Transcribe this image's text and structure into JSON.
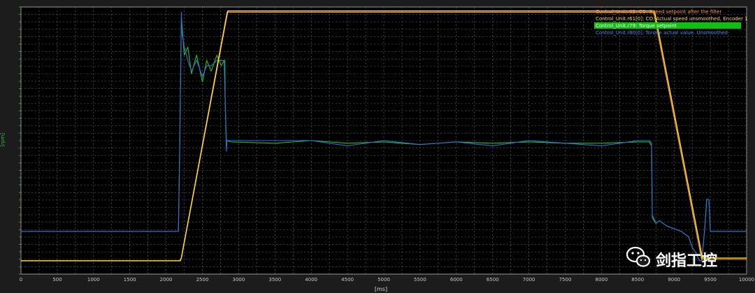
{
  "chart_data": {
    "type": "line",
    "xlabel": "[ms]",
    "ylabel": "[rpm]",
    "xlim": [
      0,
      10000
    ],
    "x_ticks": [
      0,
      500,
      1000,
      1500,
      2000,
      2500,
      3000,
      3500,
      4000,
      4500,
      5000,
      5500,
      6000,
      6500,
      7000,
      7500,
      8000,
      8500,
      9000,
      9500,
      10000
    ],
    "grid": true,
    "legend_position": "top-right",
    "series": [
      {
        "name": "Control_Unit.r62: CO: Speed setpoint after the filter",
        "color": "#ff9a2e",
        "x": [
          0,
          2180,
          2200,
          2840,
          8720,
          9380,
          10000
        ],
        "y": [
          0.05,
          0.05,
          0.05,
          0.98,
          0.98,
          0.055,
          0.055
        ]
      },
      {
        "name": "Control_Unit.r61[0]: CO: Actual speed unsmoothed, Encoder 1",
        "color": "#ffe23a",
        "x": [
          0,
          2190,
          2210,
          2850,
          8730,
          9390,
          10000
        ],
        "y": [
          0.05,
          0.05,
          0.06,
          0.985,
          0.985,
          0.06,
          0.06
        ]
      },
      {
        "name": "Control_Unit.r79: Torque setpoint",
        "color": "#21c11f",
        "x": [
          0,
          2080,
          2170,
          2190,
          2210,
          2220,
          2250,
          2300,
          2350,
          2420,
          2500,
          2560,
          2620,
          2700,
          2760,
          2800,
          2810,
          2815,
          2830,
          2900,
          3500,
          4000,
          4500,
          5000,
          5500,
          6000,
          6500,
          7000,
          7500,
          8000,
          8500,
          8660,
          8690,
          8700,
          8750,
          8800,
          8900,
          9000,
          9100,
          9200,
          9250,
          9300,
          9350,
          9380,
          9420,
          9450,
          9480,
          9500,
          10000
        ],
        "y": [
          0.16,
          0.16,
          0.16,
          0.5,
          0.96,
          0.93,
          0.82,
          0.85,
          0.75,
          0.82,
          0.72,
          0.8,
          0.76,
          0.82,
          0.78,
          0.8,
          0.8,
          0.64,
          0.5,
          0.495,
          0.49,
          0.5,
          0.49,
          0.495,
          0.485,
          0.495,
          0.49,
          0.495,
          0.49,
          0.49,
          0.495,
          0.495,
          0.48,
          0.22,
          0.19,
          0.2,
          0.18,
          0.17,
          0.16,
          0.14,
          0.1,
          0.08,
          0.05,
          0.05,
          0.16,
          0.28,
          0.28,
          0.16,
          0.16
        ]
      },
      {
        "name": "Control_Unit.r80[0]: Torque actual value. Unsmoothed",
        "color": "#2f6fe0",
        "x": [
          0,
          2080,
          2170,
          2190,
          2210,
          2220,
          2250,
          2300,
          2350,
          2420,
          2500,
          2560,
          2620,
          2700,
          2760,
          2800,
          2815,
          2830,
          2840,
          2900,
          3500,
          4000,
          4500,
          5000,
          5500,
          6000,
          6500,
          7000,
          7500,
          8000,
          8500,
          8660,
          8690,
          8700,
          8750,
          8800,
          8900,
          9000,
          9100,
          9200,
          9250,
          9300,
          9350,
          9380,
          9420,
          9450,
          9480,
          9500,
          10000
        ],
        "y": [
          0.16,
          0.16,
          0.16,
          0.52,
          0.98,
          0.9,
          0.85,
          0.8,
          0.76,
          0.8,
          0.74,
          0.78,
          0.78,
          0.8,
          0.8,
          0.8,
          0.64,
          0.46,
          0.5,
          0.5,
          0.5,
          0.5,
          0.48,
          0.5,
          0.485,
          0.495,
          0.48,
          0.5,
          0.49,
          0.48,
          0.5,
          0.5,
          0.49,
          0.21,
          0.19,
          0.2,
          0.18,
          0.17,
          0.16,
          0.14,
          0.1,
          0.08,
          0.05,
          0.05,
          0.16,
          0.28,
          0.28,
          0.16,
          0.16
        ]
      }
    ]
  },
  "legend": [
    {
      "label": "Control_Unit.r62: CO: Speed setpoint after the filter",
      "color": "#ff9a2e",
      "selected": false
    },
    {
      "label": "Control_Unit.r61[0]: CO: Actual speed unsmoothed, Encoder 1",
      "color": "#ffe23a",
      "selected": false
    },
    {
      "label": "Control_Unit.r79: Torque setpoint",
      "color": "#21c11f",
      "selected": true
    },
    {
      "label": "Control_Unit.r80[0]: Torque actual value. Unsmoothed",
      "color": "#2f6fe0",
      "selected": false
    }
  ],
  "watermark": {
    "icon": "wechat-icon",
    "text": "剑指工控"
  }
}
